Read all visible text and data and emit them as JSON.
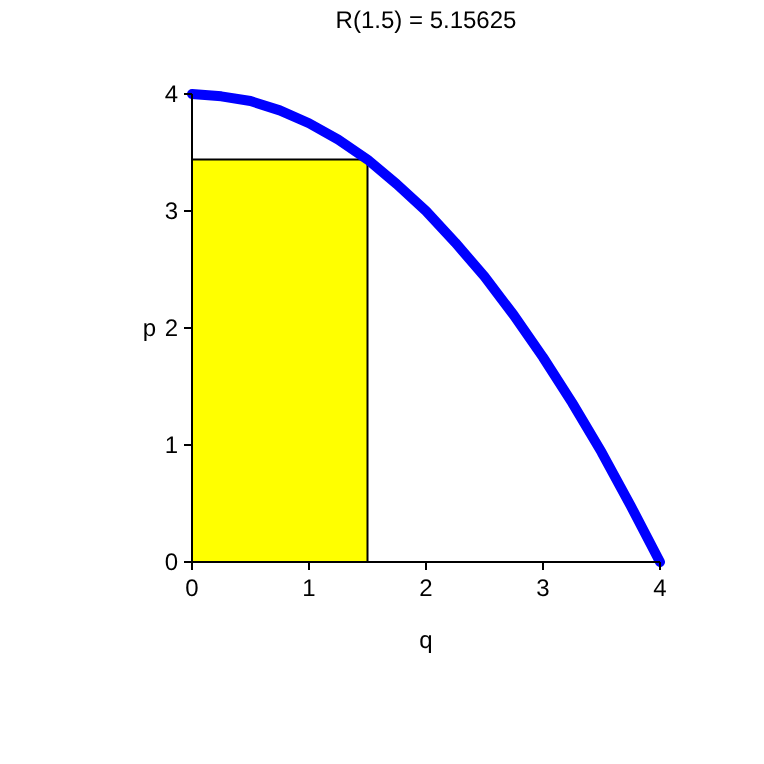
{
  "chart_data": {
    "type": "line",
    "title": "R(1.5) = 5.15625",
    "xlabel": "q",
    "ylabel": "p",
    "xlim": [
      0,
      4
    ],
    "ylim": [
      0,
      4
    ],
    "xticks": [
      0,
      1,
      2,
      3,
      4
    ],
    "yticks": [
      0,
      1,
      2,
      3,
      4
    ],
    "grid": false,
    "marker": "none",
    "series": [
      {
        "type": "area",
        "color": "#ffff00",
        "x": [
          0,
          1.5
        ],
        "values": [
          3.44,
          3.44
        ]
      },
      {
        "color": "#0000ff",
        "x": [
          0,
          0.25,
          0.5,
          0.75,
          1,
          1.25,
          1.5,
          1.75,
          2,
          2.25,
          2.5,
          2.75,
          3,
          3.25,
          3.5,
          3.75,
          4
        ],
        "values": [
          4,
          3.98,
          3.94,
          3.86,
          3.75,
          3.61,
          3.44,
          3.23,
          3,
          2.73,
          2.44,
          2.11,
          1.75,
          1.36,
          0.94,
          0.48,
          0
        ]
      }
    ]
  }
}
